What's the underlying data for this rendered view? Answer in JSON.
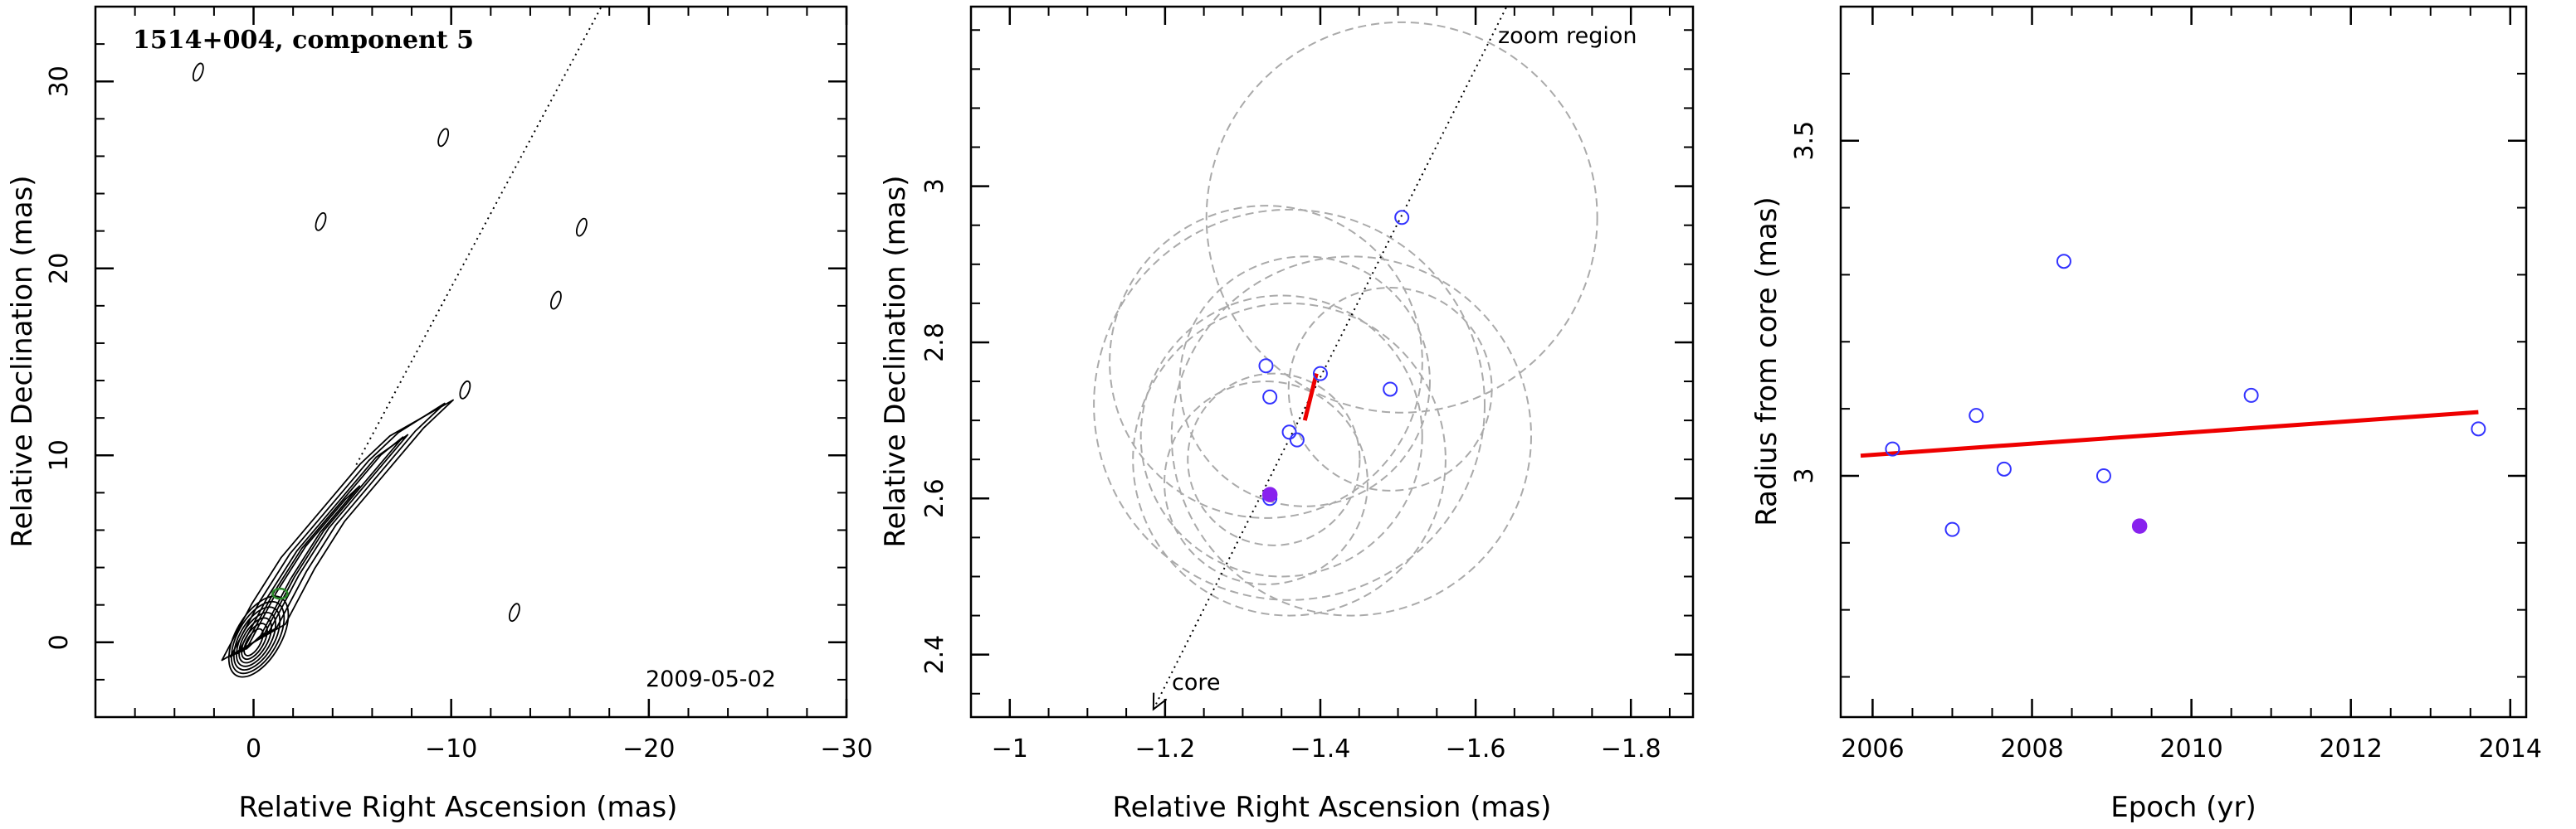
{
  "chart_data": [
    {
      "type": "contour",
      "title": "1514+004, component 5",
      "annotation": "2009-05-02",
      "xlabel": "Relative Right Ascension (mas)",
      "ylabel": "Relative Declination (mas)",
      "xlim": [
        8,
        -30
      ],
      "ylim": [
        -4,
        34
      ],
      "xticks": [
        0,
        -10,
        -20,
        -30
      ],
      "xtick_labels": [
        "0",
        "−10",
        "−20",
        "−30"
      ],
      "yticks": [
        0,
        10,
        20,
        30
      ],
      "ytick_labels": [
        "0",
        "10",
        "20",
        "30"
      ],
      "core_position": [
        0,
        0
      ],
      "component_position": [
        -1.34,
        2.6
      ],
      "jet_direction_line": {
        "from": [
          -5.2,
          9.5
        ],
        "to": [
          -17.6,
          34
        ]
      },
      "isolated_contours": [
        {
          "x": 2.8,
          "y": 30.5
        },
        {
          "x": -9.6,
          "y": 27
        },
        {
          "x": -3.4,
          "y": 22.5
        },
        {
          "x": -16.6,
          "y": 22.2
        },
        {
          "x": -15.3,
          "y": 18.3
        },
        {
          "x": -10.7,
          "y": 13.5
        },
        {
          "x": -13.2,
          "y": 1.6
        }
      ]
    },
    {
      "type": "scatter",
      "xlabel": "Relative Right Ascension (mas)",
      "ylabel": "Relative Declination (mas)",
      "xlim": [
        -0.95,
        -1.88
      ],
      "ylim": [
        2.32,
        3.23
      ],
      "xticks": [
        -1,
        -1.2,
        -1.4,
        -1.6,
        -1.8
      ],
      "xtick_labels": [
        "−1",
        "−1.2",
        "−1.4",
        "−1.6",
        "−1.8"
      ],
      "yticks": [
        2.4,
        2.6,
        2.8,
        3
      ],
      "ytick_labels": [
        "2.4",
        "2.6",
        "2.8",
        "3"
      ],
      "labels": {
        "zoom": "zoom region",
        "core": "core"
      },
      "points": [
        {
          "x": -1.33,
          "y": 2.77
        },
        {
          "x": -1.335,
          "y": 2.73
        },
        {
          "x": -1.36,
          "y": 2.685
        },
        {
          "x": -1.37,
          "y": 2.675
        },
        {
          "x": -1.4,
          "y": 2.76
        },
        {
          "x": -1.49,
          "y": 2.74
        },
        {
          "x": -1.505,
          "y": 2.96
        },
        {
          "x": -1.335,
          "y": 2.6
        }
      ],
      "highlight_point": {
        "x": -1.335,
        "y": 2.605
      },
      "beam_circles": [
        {
          "cx": -1.505,
          "cy": 2.96,
          "r": 0.25
        },
        {
          "cx": -1.36,
          "cy": 2.65,
          "r": 0.2
        },
        {
          "cx": -1.36,
          "cy": 2.72,
          "r": 0.25
        },
        {
          "cx": -1.34,
          "cy": 2.65,
          "r": 0.11
        },
        {
          "cx": -1.44,
          "cy": 2.68,
          "r": 0.23
        },
        {
          "cx": -1.49,
          "cy": 2.74,
          "r": 0.13
        },
        {
          "cx": -1.38,
          "cy": 2.75,
          "r": 0.16
        },
        {
          "cx": -1.35,
          "cy": 2.68,
          "r": 0.18
        },
        {
          "cx": -1.33,
          "cy": 2.62,
          "r": 0.13
        },
        {
          "cx": -1.33,
          "cy": 2.775,
          "r": 0.2
        }
      ],
      "fit_segment": {
        "from": [
          -1.38,
          2.7
        ],
        "to": [
          -1.395,
          2.76
        ]
      },
      "direction_line": {
        "from": [
          -1.185,
          2.33
        ],
        "to": [
          -1.64,
          3.23
        ]
      }
    },
    {
      "type": "scatter",
      "xlabel": "Epoch (yr)",
      "ylabel": "Radius from core (mas)",
      "xlim": [
        2005.6,
        2014.2
      ],
      "ylim": [
        2.64,
        3.7
      ],
      "xticks": [
        2006,
        2008,
        2010,
        2012,
        2014
      ],
      "xtick_labels": [
        "2006",
        "2008",
        "2010",
        "2012",
        "2014"
      ],
      "yticks": [
        3,
        3.5
      ],
      "ytick_labels": [
        "3",
        "3.5"
      ],
      "points": [
        {
          "x": 2006.25,
          "y": 3.04
        },
        {
          "x": 2007.0,
          "y": 2.92
        },
        {
          "x": 2007.3,
          "y": 3.09
        },
        {
          "x": 2007.65,
          "y": 3.01
        },
        {
          "x": 2008.4,
          "y": 3.32
        },
        {
          "x": 2008.9,
          "y": 3.0
        },
        {
          "x": 2010.75,
          "y": 3.12
        },
        {
          "x": 2013.6,
          "y": 3.07
        }
      ],
      "highlight_point": {
        "x": 2009.35,
        "y": 2.925
      },
      "fit_line": {
        "x": [
          2005.85,
          2013.6
        ],
        "y": [
          3.03,
          3.095
        ]
      }
    }
  ],
  "colors": {
    "points": "#3333ff",
    "highlight": "#8822ee",
    "fit": "#ee0000",
    "circles": "#aaaaaa",
    "contours": "#000000",
    "component_marker": "#2a8a2a"
  }
}
